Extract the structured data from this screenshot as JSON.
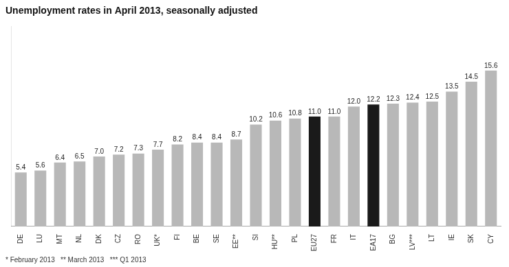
{
  "chart_data": {
    "type": "bar",
    "title": "Unemployment rates in April 2013, seasonally adjusted",
    "categories": [
      "DE",
      "LU",
      "MT",
      "NL",
      "DK",
      "CZ",
      "RO",
      "UK*",
      "FI",
      "BE",
      "SE",
      "EE**",
      "SI",
      "HU**",
      "PL",
      "EU27",
      "FR",
      "IT",
      "EA17",
      "BG",
      "LV***",
      "LT",
      "IE",
      "SK",
      "CY"
    ],
    "values": [
      5.4,
      5.6,
      6.4,
      6.5,
      7.0,
      7.2,
      7.3,
      7.7,
      8.2,
      8.4,
      8.4,
      8.7,
      10.2,
      10.6,
      10.8,
      11.0,
      11.0,
      12.0,
      12.2,
      12.3,
      12.4,
      12.5,
      13.5,
      14.5,
      15.6
    ],
    "value_labels": [
      "5.4",
      "5.6",
      "6.4",
      "6.5",
      "7.0",
      "7.2",
      "7.3",
      "7.7",
      "8.2",
      "8.4",
      "8.4",
      "8.7",
      "10.2",
      "10.6",
      "10.8",
      "11.0",
      "11.0",
      "12.0",
      "12.2",
      "12.3",
      "12.4",
      "12.5",
      "13.5",
      "14.5",
      "15.6"
    ],
    "colors": [
      "#b8b8b8",
      "#b8b8b8",
      "#b8b8b8",
      "#b8b8b8",
      "#b8b8b8",
      "#b8b8b8",
      "#b8b8b8",
      "#b8b8b8",
      "#b8b8b8",
      "#b8b8b8",
      "#b8b8b8",
      "#b8b8b8",
      "#b8b8b8",
      "#b8b8b8",
      "#b8b8b8",
      "#1a1a1a",
      "#b8b8b8",
      "#b8b8b8",
      "#1a1a1a",
      "#b8b8b8",
      "#b8b8b8",
      "#b8b8b8",
      "#b8b8b8",
      "#b8b8b8",
      "#b8b8b8"
    ],
    "ylim": [
      0,
      20
    ],
    "yticks": [],
    "grid": false,
    "data_labels": true,
    "tick_labels": "x",
    "annotations": [
      "* February 2013   ** March 2013   *** Q1 2013"
    ]
  }
}
